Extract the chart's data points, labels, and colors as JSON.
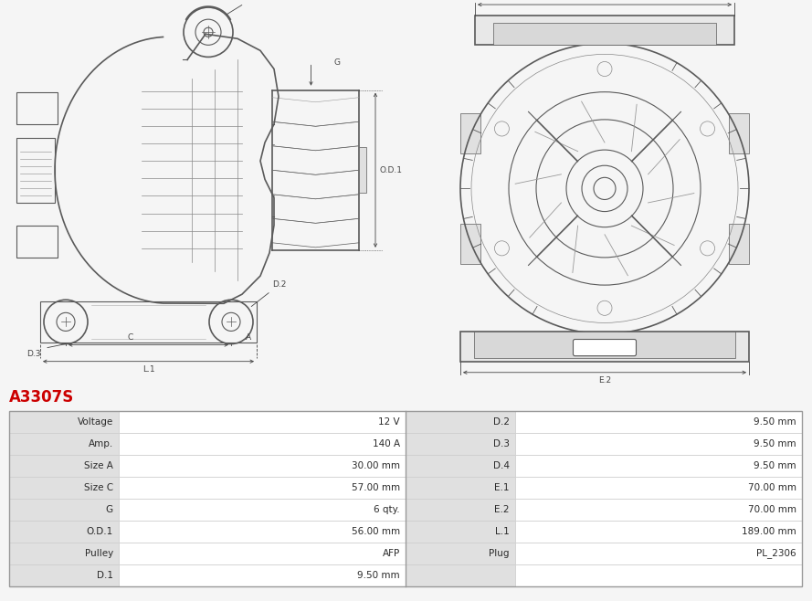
{
  "title": "A3307S",
  "title_color": "#cc0000",
  "bg_color": "#f5f5f5",
  "table_rows": [
    [
      "Voltage",
      "12 V",
      "D.2",
      "9.50 mm"
    ],
    [
      "Amp.",
      "140 A",
      "D.3",
      "9.50 mm"
    ],
    [
      "Size A",
      "30.00 mm",
      "D.4",
      "9.50 mm"
    ],
    [
      "Size C",
      "57.00 mm",
      "E.1",
      "70.00 mm"
    ],
    [
      "G",
      "6 qty.",
      "E.2",
      "70.00 mm"
    ],
    [
      "O.D.1",
      "56.00 mm",
      "L.1",
      "189.00 mm"
    ],
    [
      "Pulley",
      "AFP",
      "Plug",
      "PL_2306"
    ],
    [
      "D.1",
      "9.50 mm",
      "",
      ""
    ]
  ],
  "row_bg_label": "#e0e0e0",
  "row_bg_value": "#ffffff",
  "border_color": "#cccccc",
  "text_color": "#2a2a2a",
  "dim_color": "#444444",
  "draw_color": "#5a5a5a"
}
